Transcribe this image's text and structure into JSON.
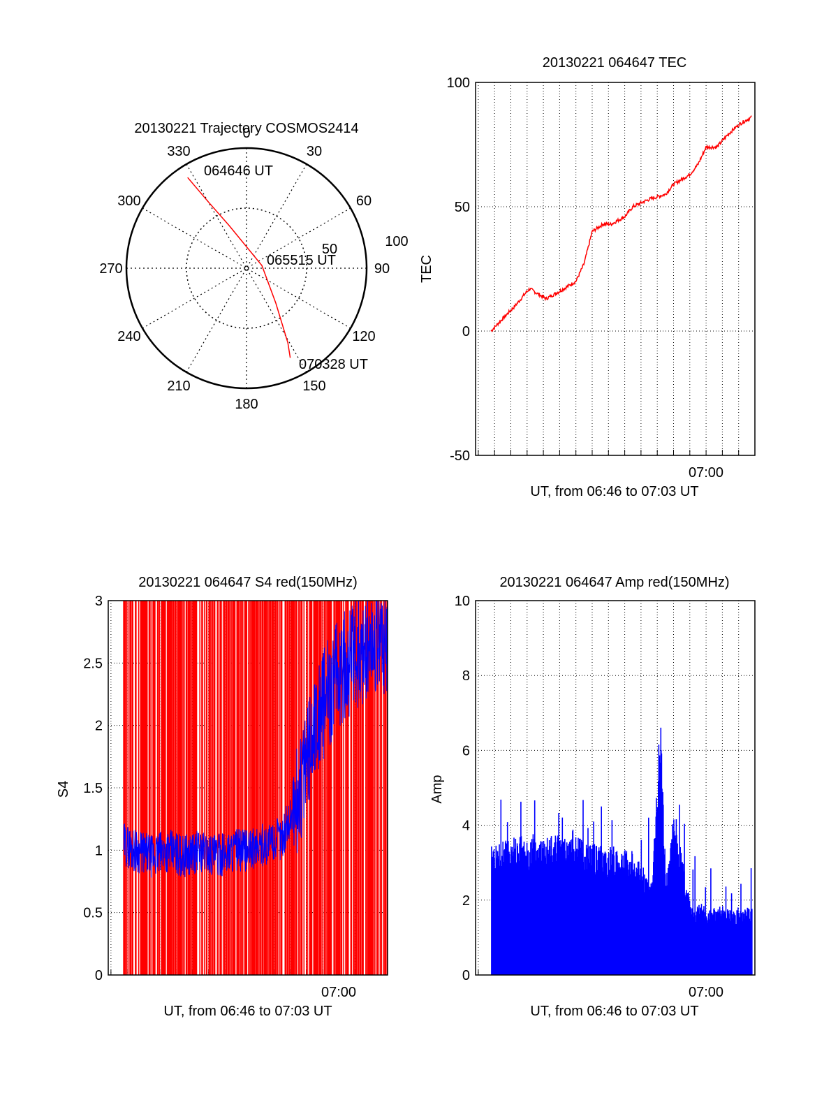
{
  "colors": {
    "red": "#ff0000",
    "blue": "#0000ff",
    "axis": "#000000",
    "background": "#ffffff"
  },
  "polar": {
    "title": "20130221 Trajectory COSMOS2414",
    "azimuth_labels": [
      "0",
      "30",
      "60",
      "90",
      "120",
      "150",
      "180",
      "210",
      "240",
      "270",
      "300",
      "330"
    ],
    "ring_labels": [
      "100",
      "50"
    ],
    "start_label": "064646 UT",
    "mid_label": "065515 UT",
    "end_label": "070328 UT"
  },
  "chart_data": [
    {
      "id": "polar",
      "type": "scatter",
      "title": "20130221 Trajectory COSMOS2414",
      "coordinate_system": "polar (azimuth in degrees, radius = zenith distance, 0 at center, 100 at rim)",
      "rlim": [
        0,
        100
      ],
      "series": [
        {
          "color": "#ff0000",
          "points": [
            {
              "az": 327,
              "r": 90
            },
            {
              "az": 330,
              "r": 64
            },
            {
              "az": 338,
              "r": 38
            },
            {
              "az": 80,
              "r": 13
            },
            {
              "az": 140,
              "r": 38
            },
            {
              "az": 151,
              "r": 71
            },
            {
              "az": 154,
              "r": 83
            }
          ]
        }
      ]
    },
    {
      "id": "tec",
      "type": "line",
      "title": "20130221 064647 TEC",
      "xlabel": "UT, from 06:46 to 07:03 UT",
      "ylabel": "TEC",
      "xlim": [
        "06:45:50",
        "07:03:00"
      ],
      "ylim": [
        -50,
        100
      ],
      "x_ticks": [
        "07:00"
      ],
      "y_ticks": [
        "-50",
        "0",
        "50",
        "100"
      ],
      "series": [
        {
          "color": "#ff0000",
          "x": [
            "06:46:47",
            "06:47:30",
            "06:48:15",
            "06:49:00",
            "06:49:10",
            "06:49:40",
            "06:50:10",
            "06:51:00",
            "06:52:00",
            "06:52:30",
            "06:53:00",
            "06:53:40",
            "06:54:10",
            "06:55:00",
            "06:55:30",
            "06:56:30",
            "06:57:30",
            "06:58:00",
            "06:59:00",
            "06:59:30",
            "07:00:00",
            "07:00:40",
            "07:01:20",
            "07:02:00",
            "07:02:47"
          ],
          "y": [
            0,
            5,
            10,
            16,
            17,
            15,
            13,
            16,
            20,
            27,
            40,
            43,
            43,
            46,
            50,
            53,
            55,
            59,
            63,
            67,
            74,
            74,
            79,
            83,
            86
          ]
        }
      ]
    },
    {
      "id": "s4",
      "type": "line",
      "title": "20130221 064647 S4 red(150MHz)",
      "xlabel": "UT, from 06:46 to 07:03 UT",
      "ylabel": "S4",
      "xlim": [
        "06:45:50",
        "07:03:00"
      ],
      "ylim": [
        0,
        3
      ],
      "x_ticks": [
        "07:00"
      ],
      "y_ticks": [
        "0",
        "0.5",
        "1",
        "1.5",
        "2",
        "2.5",
        "3"
      ],
      "series": [
        {
          "name": "",
          "color": "#ff0000",
          "style": "dense vertical spikes spanning 0 to 3",
          "x": [
            "06:46:47",
            "06:47:30",
            "06:48:30",
            "06:49:30",
            "06:50:30",
            "06:51:30",
            "06:52:30",
            "06:53:30",
            "06:54:30",
            "06:55:30",
            "06:56:30",
            "06:57:30",
            "06:58:30",
            "06:59:30",
            "07:00:30",
            "07:01:30",
            "07:02:30"
          ],
          "y": [
            1.0,
            1.1,
            1.0,
            1.0,
            0.9,
            1.0,
            1.0,
            0.9,
            1.0,
            1.1,
            1.2,
            1.5,
            2.0,
            2.3,
            2.6,
            2.7,
            2.8
          ]
        },
        {
          "name": "",
          "color": "#0000ff",
          "x": [
            "06:46:47",
            "06:47:30",
            "06:48:30",
            "06:49:30",
            "06:50:30",
            "06:51:30",
            "06:52:30",
            "06:53:30",
            "06:54:30",
            "06:55:30",
            "06:56:30",
            "06:57:30",
            "06:58:30",
            "06:59:30",
            "07:00:30",
            "07:01:30",
            "07:02:30"
          ],
          "y": [
            1.05,
            1.0,
            0.95,
            1.0,
            0.95,
            1.0,
            0.95,
            1.0,
            1.0,
            1.05,
            1.1,
            1.4,
            2.0,
            2.3,
            2.5,
            2.6,
            2.7
          ]
        }
      ]
    },
    {
      "id": "amp",
      "type": "area",
      "title": "20130221 064647 Amp red(150MHz)",
      "xlabel": "UT, from 06:46 to 07:03 UT",
      "ylabel": "Amp",
      "xlim": [
        "06:45:50",
        "07:03:00"
      ],
      "ylim": [
        0,
        10
      ],
      "x_ticks": [
        "07:00"
      ],
      "y_ticks": [
        "0",
        "2",
        "4",
        "6",
        "8",
        "10"
      ],
      "series": [
        {
          "color": "#0000ff",
          "x": [
            "06:46:47",
            "06:47:30",
            "06:48:30",
            "06:49:30",
            "06:50:30",
            "06:51:30",
            "06:52:30",
            "06:53:30",
            "06:54:30",
            "06:55:30",
            "06:56:00",
            "06:56:40",
            "06:57:10",
            "06:57:30",
            "06:58:00",
            "06:59:00",
            "07:00:00",
            "07:01:00",
            "07:02:00",
            "07:02:47"
          ],
          "y": [
            3.0,
            3.2,
            3.3,
            3.2,
            3.3,
            3.2,
            3.2,
            3.0,
            3.0,
            2.8,
            2.6,
            2.3,
            6.2,
            2.0,
            3.9,
            1.7,
            1.6,
            1.6,
            1.5,
            1.6
          ]
        }
      ]
    }
  ]
}
